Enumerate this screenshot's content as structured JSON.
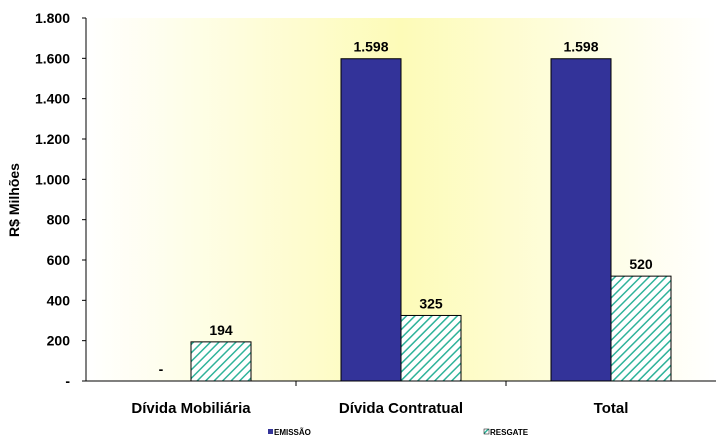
{
  "chart_data": {
    "type": "bar",
    "ylabel": "R$ Milhões",
    "categories": [
      "Dívida Mobiliária",
      "Dívida Contratual",
      "Total"
    ],
    "series": [
      {
        "name": "EMISSÃO",
        "values": [
          0,
          1598,
          1598
        ],
        "labels": [
          "-",
          "1.598",
          "1.598"
        ],
        "color": "#333399"
      },
      {
        "name": "RESGATE",
        "values": [
          194,
          325,
          520
        ],
        "labels": [
          "194",
          "325",
          "520"
        ],
        "color": "#33ccaa",
        "pattern": "diagonal-hatch"
      }
    ],
    "ylim": [
      0,
      1800
    ],
    "yticks": [
      0,
      200,
      400,
      600,
      800,
      1000,
      1200,
      1400,
      1600,
      1800
    ],
    "ytick_labels": [
      "-",
      "200",
      "400",
      "600",
      "800",
      "1.000",
      "1.200",
      "1.400",
      "1.600",
      "1.800"
    ],
    "legend_position": "bottom",
    "plot_background": "#fefccc"
  }
}
